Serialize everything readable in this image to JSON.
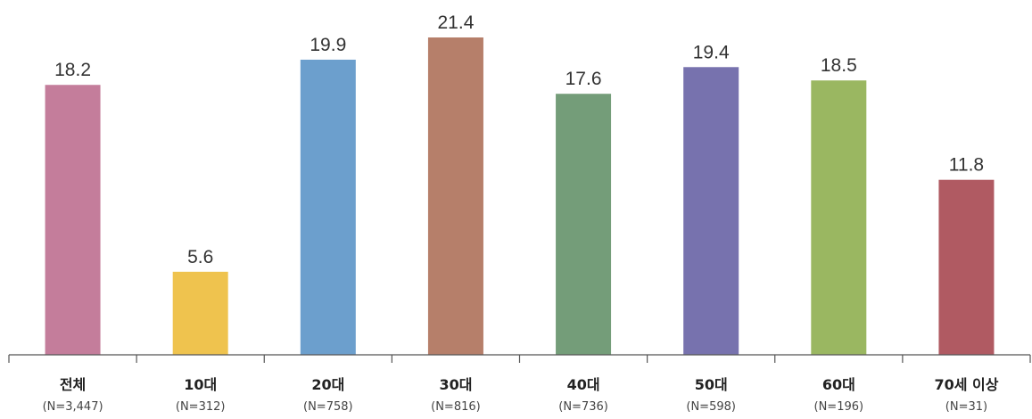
{
  "chart_data": {
    "type": "bar",
    "categories": [
      "전체",
      "10대",
      "20대",
      "30대",
      "40대",
      "50대",
      "60대",
      "70세 이상"
    ],
    "sample_sizes": [
      "(N=3,447)",
      "(N=312)",
      "(N=758)",
      "(N=816)",
      "(N=736)",
      "(N=598)",
      "(N=196)",
      "(N=31)"
    ],
    "values": [
      18.2,
      5.6,
      19.9,
      21.4,
      17.6,
      19.4,
      18.5,
      11.8
    ],
    "value_labels": [
      "18.2",
      "5.6",
      "19.9",
      "21.4",
      "17.6",
      "19.4",
      "18.5",
      "11.8"
    ],
    "colors": [
      "#c47d9b",
      "#efc34e",
      "#6c9fcd",
      "#b67f6a",
      "#749d79",
      "#7772ae",
      "#9ab761",
      "#b05a62"
    ],
    "ylim": [
      0,
      21.4
    ],
    "grid": false,
    "title": "",
    "xlabel": "",
    "ylabel": ""
  }
}
